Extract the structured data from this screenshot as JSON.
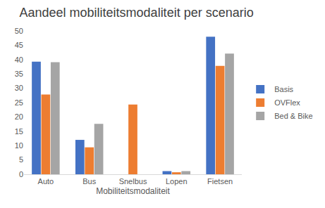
{
  "chart_data": {
    "type": "bar",
    "title": "Aandeel mobiliteitsmodaliteit per scenario",
    "x_label": "Mobiliteitsmodaliteit",
    "categories": [
      "Auto",
      "Bus",
      "Snelbus",
      "Lopen",
      "Fietsen"
    ],
    "series": [
      {
        "name": "Basis",
        "color": "#4472c4",
        "values": [
          39.3,
          12.0,
          0,
          1.1,
          48.0
        ]
      },
      {
        "name": "OVFlex",
        "color": "#ed7d31",
        "values": [
          27.8,
          9.4,
          24.3,
          0.7,
          37.8
        ]
      },
      {
        "name": "Bed & Bike",
        "color": "#a5a5a5",
        "values": [
          39.1,
          17.6,
          0,
          1.1,
          42.1
        ]
      }
    ],
    "ylim": [
      0,
      50
    ],
    "yticks": [
      0,
      5,
      10,
      15,
      20,
      25,
      30,
      35,
      40,
      45,
      50
    ],
    "grid": false,
    "legend": "right"
  }
}
